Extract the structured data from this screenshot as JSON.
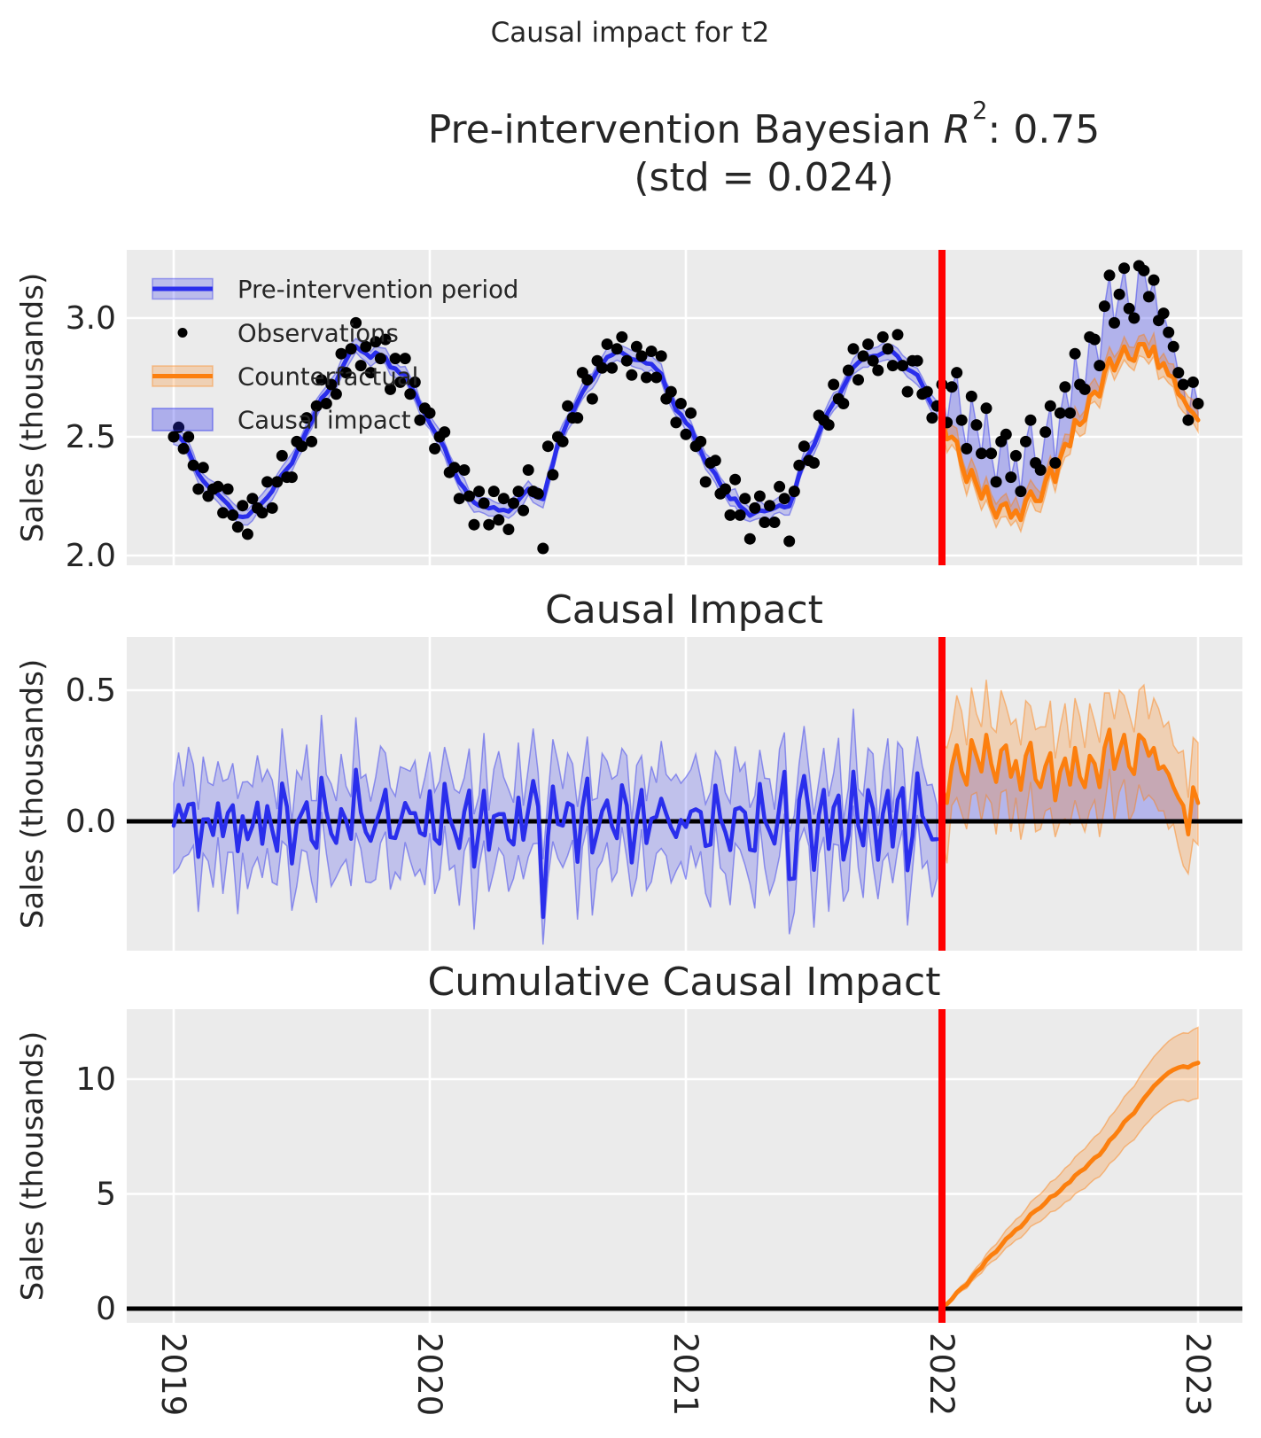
{
  "figure": {
    "suptitle": "Causal impact for t2",
    "plot1_title": {
      "prefix": "Pre-intervention Bayesian ",
      "r": "R",
      "sup": "2",
      "suffix": ": 0.75",
      "line2": "(std = 0.024)"
    },
    "plot2_title": "Causal Impact",
    "plot3_title": "Cumulative Causal Impact",
    "ylabel": "Sales (thousands)"
  },
  "colors": {
    "blue": "#2a2eec",
    "orange": "#fc7f0e",
    "red": "#ff0000",
    "black": "#000000",
    "axes_bg": "#ebebeb",
    "grid": "#ffffff",
    "text": "#262626"
  },
  "chart_data": [
    {
      "type": "line",
      "title": "Pre-intervention Bayesian R2: 0.75 (std = 0.024)",
      "ylabel": "Sales (thousands)",
      "xlabel": "",
      "x_start": 2019.0,
      "points_per_year": 52,
      "intervention_x": 2022.0,
      "xlim": [
        2018.82,
        2023.17
      ],
      "ylim": [
        1.959,
        3.287
      ],
      "yticks": [
        {
          "v": 2.0,
          "label": "2.0"
        },
        {
          "v": 2.5,
          "label": "2.5"
        },
        {
          "v": 3.0,
          "label": "3.0"
        }
      ],
      "xticks": [
        {
          "v": 2019,
          "label": "2019"
        },
        {
          "v": 2020,
          "label": "2020"
        },
        {
          "v": 2021,
          "label": "2021"
        },
        {
          "v": 2022,
          "label": "2022"
        },
        {
          "v": 2023,
          "label": "2023"
        }
      ],
      "legend": [
        "Pre-intervention period",
        "Observations",
        "Counterfactual",
        "Causal impact"
      ],
      "grid": true,
      "observations": [
        2.5,
        2.54,
        2.45,
        2.5,
        2.38,
        2.28,
        2.37,
        2.25,
        2.28,
        2.29,
        2.18,
        2.28,
        2.17,
        2.12,
        2.21,
        2.09,
        2.24,
        2.2,
        2.18,
        2.31,
        2.2,
        2.31,
        2.42,
        2.33,
        2.33,
        2.48,
        2.46,
        2.58,
        2.48,
        2.63,
        2.74,
        2.64,
        2.72,
        2.68,
        2.85,
        2.77,
        2.87,
        2.98,
        2.8,
        2.88,
        2.77,
        2.9,
        2.83,
        2.91,
        2.7,
        2.83,
        2.73,
        2.83,
        2.68,
        2.73,
        2.57,
        2.62,
        2.6,
        2.45,
        2.5,
        2.52,
        2.35,
        2.37,
        2.24,
        2.36,
        2.25,
        2.13,
        2.27,
        2.22,
        2.13,
        2.27,
        2.15,
        2.24,
        2.11,
        2.22,
        2.27,
        2.19,
        2.36,
        2.27,
        2.26,
        2.03,
        2.46,
        2.34,
        2.5,
        2.48,
        2.63,
        2.58,
        2.58,
        2.77,
        2.74,
        2.66,
        2.82,
        2.79,
        2.89,
        2.79,
        2.87,
        2.92,
        2.82,
        2.76,
        2.88,
        2.84,
        2.75,
        2.86,
        2.75,
        2.84,
        2.66,
        2.69,
        2.56,
        2.64,
        2.51,
        2.6,
        2.46,
        2.48,
        2.31,
        2.39,
        2.4,
        2.26,
        2.28,
        2.17,
        2.32,
        2.17,
        2.24,
        2.07,
        2.2,
        2.25,
        2.14,
        2.21,
        2.14,
        2.29,
        2.24,
        2.06,
        2.27,
        2.38,
        2.46,
        2.4,
        2.39,
        2.59,
        2.57,
        2.55,
        2.72,
        2.66,
        2.64,
        2.78,
        2.87,
        2.74,
        2.84,
        2.89,
        2.82,
        2.78,
        2.92,
        2.87,
        2.8,
        2.93,
        2.8,
        2.69,
        2.82,
        2.82,
        2.68,
        2.69,
        2.58,
        2.63,
        2.72,
        2.56,
        2.71,
        2.77,
        2.57,
        2.45,
        2.67,
        2.55,
        2.43,
        2.62,
        2.43,
        2.31,
        2.48,
        2.51,
        2.33,
        2.42,
        2.27,
        2.48,
        2.57,
        2.39,
        2.36,
        2.52,
        2.63,
        2.39,
        2.6,
        2.71,
        2.6,
        2.85,
        2.72,
        2.7,
        2.92,
        2.91,
        2.8,
        3.05,
        3.18,
        2.98,
        3.1,
        3.21,
        3.04,
        3.0,
        3.22,
        3.2,
        3.09,
        3.16,
        2.99,
        3.02,
        2.94,
        2.88,
        2.77,
        2.72,
        2.57,
        2.73,
        2.64
      ],
      "counterfactual": [
        2.59,
        2.49,
        2.5,
        2.48,
        2.38,
        2.31,
        2.36,
        2.3,
        2.24,
        2.29,
        2.21,
        2.16,
        2.21,
        2.22,
        2.16,
        2.19,
        2.15,
        2.23,
        2.27,
        2.23,
        2.23,
        2.31,
        2.37,
        2.31,
        2.41,
        2.47,
        2.46,
        2.57,
        2.55,
        2.57,
        2.67,
        2.69,
        2.67,
        2.77,
        2.83,
        2.78,
        2.83,
        2.88,
        2.83,
        2.82,
        2.89,
        2.89,
        2.84,
        2.88,
        2.79,
        2.81,
        2.76,
        2.75,
        2.68,
        2.66,
        2.62,
        2.6,
        2.57
      ],
      "pre_band_halfwidth": 0.033,
      "cf_band_halfwidth": 0.045,
      "derivation": "pre-intervention fitted line = weighted 5-point moving average of observations; causal impact band = area between observations and counterfactual after intervention"
    },
    {
      "type": "line",
      "title": "Causal Impact",
      "ylabel": "Sales (thousands)",
      "ylim": [
        -0.493,
        0.702
      ],
      "yticks": [
        {
          "v": 0.0,
          "label": "0.0"
        },
        {
          "v": 0.5,
          "label": "0.5"
        }
      ],
      "zero_line": true,
      "derivation": "impact = observations minus fitted/counterfactual line, bands = impact +/- hdi halfwidth cycles",
      "pre_hdi_halfwidth_cycle": [
        0.16,
        0.2,
        0.13,
        0.22,
        0.15,
        0.18,
        0.24,
        0.14,
        0.19,
        0.16,
        0.21,
        0.13
      ],
      "post_hdi_halfwidth_cycle": [
        0.17,
        0.21,
        0.14,
        0.19,
        0.23,
        0.15,
        0.2,
        0.16
      ],
      "pre_impact_filter": {
        "gain": 3.4,
        "w0": 0.55,
        "w1": 0.45
      },
      "band_clamp": [
        -0.47,
        0.68
      ]
    },
    {
      "type": "line",
      "title": "Cumulative Causal Impact",
      "ylabel": "Sales (thousands)",
      "ylim": [
        -0.62,
        13.05
      ],
      "yticks": [
        {
          "v": 0,
          "label": "0"
        },
        {
          "v": 5,
          "label": "5"
        },
        {
          "v": 10,
          "label": "10"
        }
      ],
      "zero_line": true,
      "cumulative_end_value": 10.71,
      "band_halfwidth_end": 1.55,
      "derivation": "cumulative sum of post-intervention impact; band grows linearly to band_halfwidth_end"
    }
  ]
}
